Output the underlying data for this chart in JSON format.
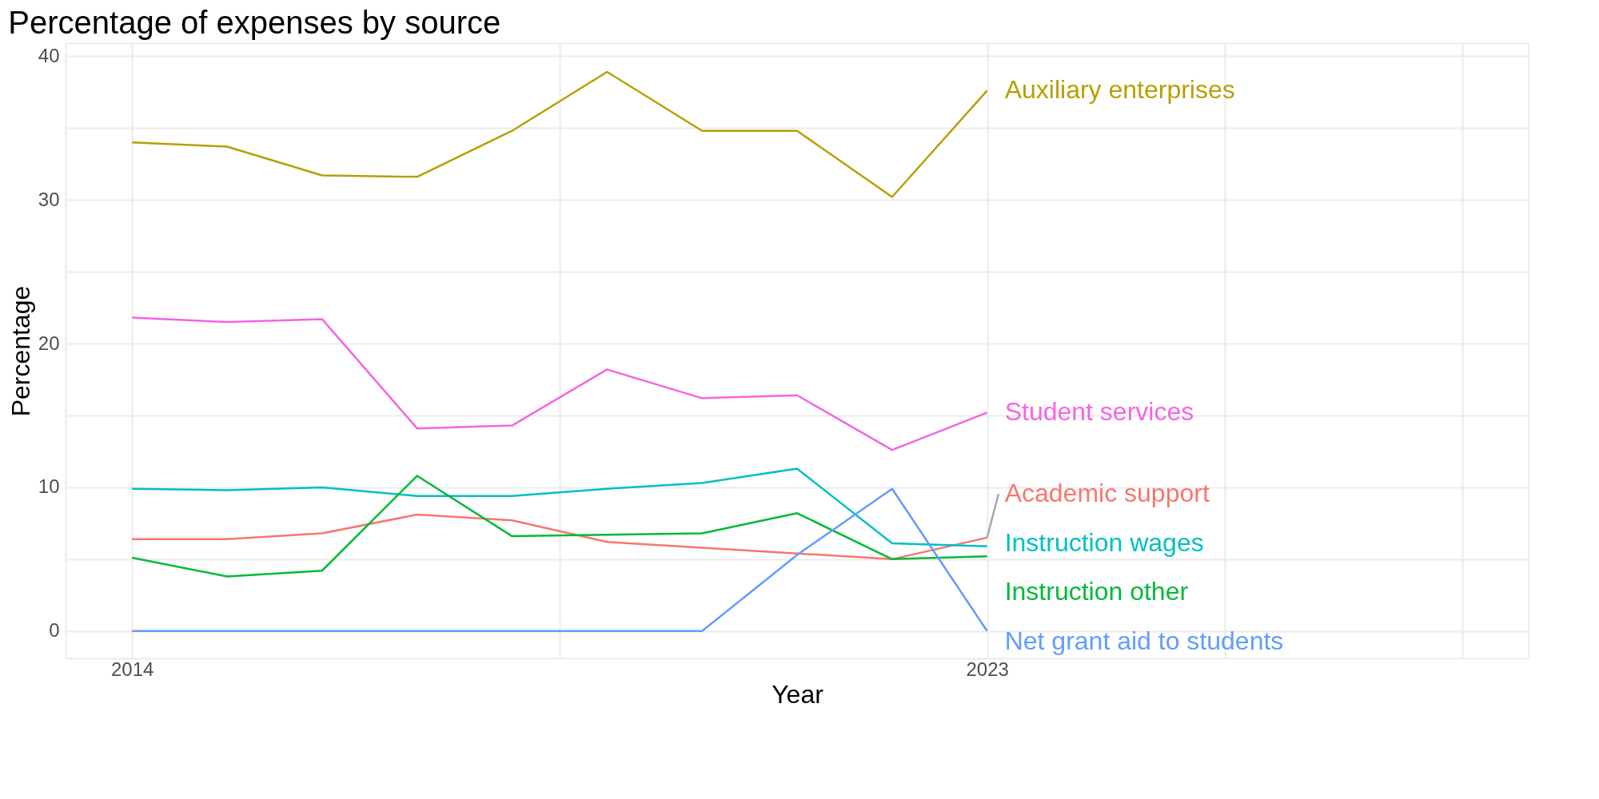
{
  "chart_data": {
    "type": "line",
    "title": "Percentage of expenses by source",
    "xlabel": "Year",
    "ylabel": "Percentage",
    "x": [
      2014,
      2015,
      2016,
      2017,
      2018,
      2019,
      2020,
      2021,
      2022,
      2023
    ],
    "series": [
      {
        "name": "Auxiliary enterprises",
        "color": "#b79f00",
        "values": [
          34.0,
          33.7,
          31.7,
          31.6,
          34.8,
          38.9,
          34.8,
          34.8,
          30.2,
          37.6
        ]
      },
      {
        "name": "Student services",
        "color": "#f564e3",
        "values": [
          21.8,
          21.5,
          21.7,
          14.1,
          14.3,
          18.2,
          16.2,
          16.4,
          12.6,
          15.2
        ]
      },
      {
        "name": "Academic support",
        "color": "#f8766d",
        "values": [
          6.4,
          6.4,
          6.8,
          8.1,
          7.7,
          6.2,
          5.8,
          5.4,
          5.0,
          6.5
        ]
      },
      {
        "name": "Instruction wages",
        "color": "#00bfc4",
        "values": [
          9.9,
          9.8,
          10.0,
          9.4,
          9.4,
          9.9,
          10.3,
          11.3,
          6.1,
          5.9
        ]
      },
      {
        "name": "Instruction other",
        "color": "#00ba38",
        "values": [
          5.1,
          3.8,
          4.2,
          10.8,
          6.6,
          6.7,
          6.8,
          8.2,
          5.0,
          5.2
        ]
      },
      {
        "name": "Net grant aid to students",
        "color": "#619cff",
        "values": [
          0,
          0,
          0,
          0,
          0,
          0,
          0,
          5.3,
          9.9,
          0
        ]
      }
    ],
    "xlim": [
      2013.3,
      2028.7
    ],
    "xticks": [
      2014,
      {
        "value": 2018.5,
        "label": null
      },
      2023,
      {
        "value": 2025.5,
        "label": null
      },
      {
        "value": 2028,
        "label": null
      }
    ],
    "ylim": [
      -1.9,
      40.9
    ],
    "yticks": [
      0,
      {
        "value": 5,
        "label": null
      },
      10,
      {
        "value": 15,
        "label": null
      },
      20,
      {
        "value": 25,
        "label": null
      },
      30,
      {
        "value": 35,
        "label": null
      },
      40
    ],
    "grid": true,
    "legend": false,
    "marker": "none",
    "line_style": "solid"
  }
}
